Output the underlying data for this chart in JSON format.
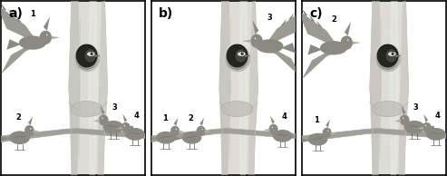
{
  "panels": [
    "a)",
    "b)",
    "c)"
  ],
  "bg_color": "#ffffff",
  "border_color": "#000000",
  "label_fontsize": 10,
  "trunk_light": "#ddddd5",
  "trunk_mid": "#c0bfb8",
  "trunk_dark": "#a0a098",
  "trunk_highlight": "#eeeeea",
  "bird_gray": "#8a8a82",
  "bird_dark": "#606058",
  "hole_dark": "#252520",
  "wp_dark": "#454540",
  "wp_light": "#888880",
  "branch_color": "#a0a098",
  "number_fontsize": 6.0
}
